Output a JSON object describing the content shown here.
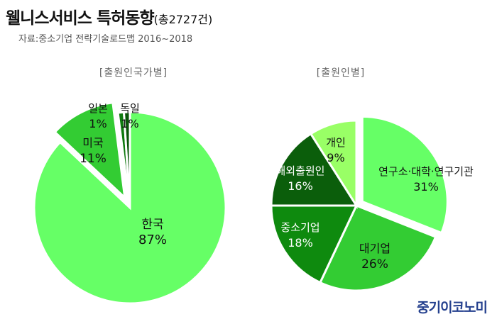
{
  "header": {
    "title": "웰니스서비스 특허동향",
    "title_sub": "(총2727건)",
    "source": "자료:중소기업 전략기술로드맵 2016~2018"
  },
  "brand": "중기이코노미",
  "chart_data": [
    {
      "type": "pie",
      "title": "[출원인국가별]",
      "start_angle_deg": 0,
      "explode_index": 1,
      "slices": [
        {
          "label": "한국",
          "value": 87,
          "value_label": "87%",
          "color": "#66ff66"
        },
        {
          "label": "미국",
          "value": 11,
          "value_label": "11%",
          "color": "#33cc33"
        },
        {
          "label": "일본",
          "value": 1,
          "value_label": "1%",
          "color": "#0f7a0f"
        },
        {
          "label": "독일",
          "value": 1,
          "value_label": "1%",
          "color": "#085508"
        }
      ]
    },
    {
      "type": "pie",
      "title": "[출원인별]",
      "start_angle_deg": 0,
      "explode_index": 0,
      "slices": [
        {
          "label": "연구소·대학·연구기관",
          "value": 31,
          "value_label": "31%",
          "color": "#66ff66"
        },
        {
          "label": "대기업",
          "value": 26,
          "value_label": "26%",
          "color": "#33cc33"
        },
        {
          "label": "중소기업",
          "value": 18,
          "value_label": "18%",
          "color": "#0e8a0e"
        },
        {
          "label": "해외출원인",
          "value": 16,
          "value_label": "16%",
          "color": "#0b5e0b"
        },
        {
          "label": "개인",
          "value": 9,
          "value_label": "9%",
          "color": "#99ff66"
        }
      ]
    }
  ]
}
